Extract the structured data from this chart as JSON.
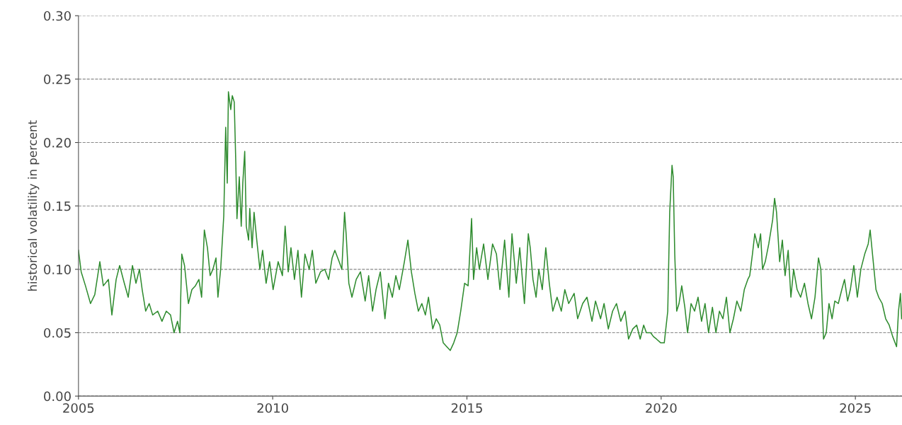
{
  "chart_data": {
    "type": "line",
    "ylabel": "historical volatility in percent",
    "xlim": [
      2005,
      2026.2
    ],
    "xticks": [
      2005,
      2010,
      2015,
      2020,
      2025
    ],
    "ylim": [
      0,
      0.3
    ],
    "yticks": [
      {
        "value": 0,
        "label": "0.00"
      },
      {
        "value": 0.05,
        "label": "0.05"
      },
      {
        "value": 0.1,
        "label": "0.10"
      },
      {
        "value": 0.15,
        "label": "0.15"
      },
      {
        "value": 0.2,
        "label": "0.20"
      },
      {
        "value": 0.25,
        "label": "0.25"
      },
      {
        "value": 0.3,
        "label": "0.30"
      }
    ],
    "grid": "y",
    "series": [
      {
        "color": "#2e8b2e",
        "line_style": "solid",
        "x": [
          2005.0,
          2005.07,
          2005.18,
          2005.31,
          2005.42,
          2005.55,
          2005.64,
          2005.77,
          2005.86,
          2005.97,
          2006.06,
          2006.18,
          2006.28,
          2006.39,
          2006.48,
          2006.57,
          2006.64,
          2006.73,
          2006.82,
          2006.91,
          2007.04,
          2007.15,
          2007.26,
          2007.37,
          2007.46,
          2007.55,
          2007.61,
          2007.66,
          2007.73,
          2007.83,
          2007.92,
          2008.01,
          2008.1,
          2008.17,
          2008.24,
          2008.32,
          2008.39,
          2008.46,
          2008.54,
          2008.59,
          2008.66,
          2008.74,
          2008.79,
          2008.83,
          2008.86,
          2008.92,
          2008.96,
          2009.01,
          2009.05,
          2009.08,
          2009.14,
          2009.19,
          2009.23,
          2009.28,
          2009.32,
          2009.38,
          2009.41,
          2009.47,
          2009.52,
          2009.59,
          2009.67,
          2009.74,
          2009.83,
          2009.92,
          2010.01,
          2010.14,
          2010.25,
          2010.32,
          2010.4,
          2010.47,
          2010.56,
          2010.65,
          2010.74,
          2010.83,
          2010.94,
          2011.02,
          2011.11,
          2011.23,
          2011.34,
          2011.44,
          2011.53,
          2011.6,
          2011.71,
          2011.78,
          2011.85,
          2011.89,
          2011.96,
          2012.04,
          2012.15,
          2012.26,
          2012.38,
          2012.47,
          2012.57,
          2012.66,
          2012.77,
          2012.89,
          2012.98,
          2013.08,
          2013.17,
          2013.26,
          2013.39,
          2013.48,
          2013.57,
          2013.66,
          2013.75,
          2013.84,
          2013.93,
          2014.01,
          2014.12,
          2014.21,
          2014.3,
          2014.39,
          2014.48,
          2014.57,
          2014.66,
          2014.75,
          2014.84,
          2014.94,
          2015.03,
          2015.12,
          2015.17,
          2015.25,
          2015.32,
          2015.43,
          2015.54,
          2015.66,
          2015.76,
          2015.85,
          2015.97,
          2016.08,
          2016.16,
          2016.27,
          2016.36,
          2016.48,
          2016.58,
          2016.63,
          2016.7,
          2016.78,
          2016.85,
          2016.94,
          2017.03,
          2017.12,
          2017.21,
          2017.32,
          2017.43,
          2017.52,
          2017.62,
          2017.76,
          2017.85,
          2017.98,
          2018.09,
          2018.22,
          2018.31,
          2018.44,
          2018.53,
          2018.64,
          2018.75,
          2018.85,
          2018.96,
          2019.07,
          2019.16,
          2019.27,
          2019.37,
          2019.46,
          2019.55,
          2019.62,
          2019.73,
          2019.8,
          2019.88,
          2019.99,
          2020.08,
          2020.17,
          2020.22,
          2020.28,
          2020.31,
          2020.35,
          2020.4,
          2020.46,
          2020.53,
          2020.61,
          2020.68,
          2020.77,
          2020.86,
          2020.95,
          2021.04,
          2021.13,
          2021.22,
          2021.32,
          2021.41,
          2021.5,
          2021.59,
          2021.68,
          2021.77,
          2021.86,
          2021.95,
          2022.05,
          2022.14,
          2022.23,
          2022.28,
          2022.35,
          2022.41,
          2022.5,
          2022.56,
          2022.61,
          2022.68,
          2022.77,
          2022.87,
          2022.92,
          2022.97,
          2023.05,
          2023.12,
          2023.19,
          2023.27,
          2023.34,
          2023.41,
          2023.5,
          2023.59,
          2023.69,
          2023.78,
          2023.87,
          2023.96,
          2024.05,
          2024.11,
          2024.18,
          2024.25,
          2024.32,
          2024.4,
          2024.47,
          2024.56,
          2024.65,
          2024.72,
          2024.8,
          2024.87,
          2024.96,
          2025.05,
          2025.14,
          2025.24,
          2025.33,
          2025.38,
          2025.45,
          2025.53,
          2025.6,
          2025.69,
          2025.78,
          2025.87,
          2025.96,
          2026.06,
          2026.11,
          2026.16,
          2026.19
        ],
        "values": [
          0.115,
          0.098,
          0.087,
          0.073,
          0.08,
          0.106,
          0.087,
          0.092,
          0.064,
          0.092,
          0.103,
          0.089,
          0.078,
          0.103,
          0.089,
          0.1,
          0.084,
          0.067,
          0.073,
          0.064,
          0.067,
          0.059,
          0.067,
          0.064,
          0.05,
          0.059,
          0.05,
          0.112,
          0.103,
          0.073,
          0.084,
          0.087,
          0.092,
          0.078,
          0.131,
          0.117,
          0.095,
          0.1,
          0.109,
          0.078,
          0.1,
          0.142,
          0.212,
          0.168,
          0.24,
          0.226,
          0.237,
          0.232,
          0.184,
          0.14,
          0.173,
          0.134,
          0.168,
          0.193,
          0.134,
          0.123,
          0.148,
          0.117,
          0.145,
          0.123,
          0.1,
          0.115,
          0.089,
          0.106,
          0.084,
          0.106,
          0.095,
          0.134,
          0.098,
          0.117,
          0.092,
          0.115,
          0.078,
          0.112,
          0.1,
          0.115,
          0.089,
          0.098,
          0.1,
          0.092,
          0.109,
          0.115,
          0.106,
          0.1,
          0.145,
          0.128,
          0.089,
          0.078,
          0.092,
          0.098,
          0.075,
          0.095,
          0.067,
          0.084,
          0.098,
          0.061,
          0.089,
          0.078,
          0.095,
          0.084,
          0.106,
          0.123,
          0.098,
          0.081,
          0.067,
          0.073,
          0.064,
          0.078,
          0.053,
          0.061,
          0.056,
          0.042,
          0.039,
          0.036,
          0.042,
          0.05,
          0.067,
          0.089,
          0.087,
          0.14,
          0.092,
          0.117,
          0.1,
          0.12,
          0.092,
          0.12,
          0.112,
          0.084,
          0.123,
          0.078,
          0.128,
          0.089,
          0.117,
          0.073,
          0.128,
          0.117,
          0.092,
          0.078,
          0.1,
          0.084,
          0.117,
          0.089,
          0.067,
          0.078,
          0.067,
          0.084,
          0.073,
          0.081,
          0.061,
          0.073,
          0.078,
          0.059,
          0.075,
          0.061,
          0.073,
          0.053,
          0.067,
          0.073,
          0.059,
          0.067,
          0.045,
          0.053,
          0.056,
          0.045,
          0.056,
          0.05,
          0.05,
          0.047,
          0.045,
          0.042,
          0.042,
          0.067,
          0.145,
          0.182,
          0.173,
          0.112,
          0.067,
          0.073,
          0.087,
          0.07,
          0.05,
          0.073,
          0.067,
          0.078,
          0.059,
          0.073,
          0.05,
          0.07,
          0.05,
          0.067,
          0.061,
          0.078,
          0.05,
          0.061,
          0.075,
          0.067,
          0.084,
          0.092,
          0.095,
          0.112,
          0.128,
          0.117,
          0.128,
          0.1,
          0.106,
          0.12,
          0.139,
          0.156,
          0.145,
          0.106,
          0.123,
          0.095,
          0.115,
          0.078,
          0.1,
          0.084,
          0.078,
          0.089,
          0.073,
          0.061,
          0.078,
          0.109,
          0.1,
          0.045,
          0.05,
          0.073,
          0.061,
          0.075,
          0.073,
          0.084,
          0.092,
          0.075,
          0.084,
          0.103,
          0.078,
          0.1,
          0.112,
          0.12,
          0.131,
          0.109,
          0.084,
          0.078,
          0.073,
          0.061,
          0.056,
          0.047,
          0.039,
          0.067,
          0.081,
          0.061
        ]
      }
    ]
  }
}
